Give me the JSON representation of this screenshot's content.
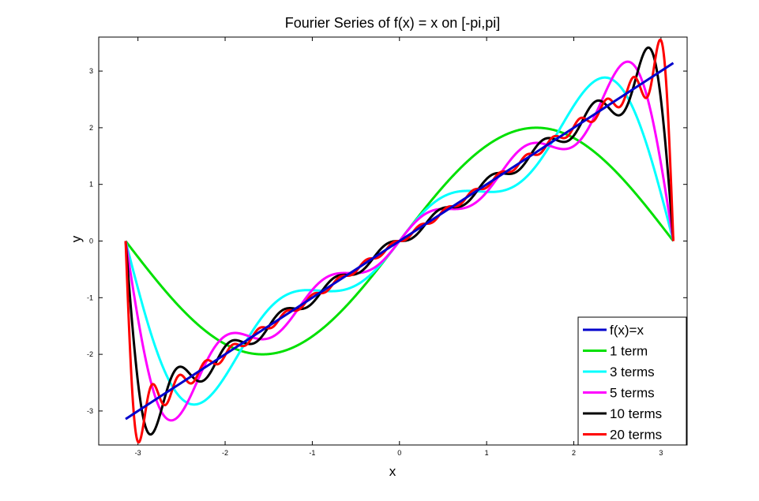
{
  "chart_data": {
    "type": "line",
    "title": "Fourier Series of f(x) = x on [-pi,pi]",
    "xlabel": "x",
    "ylabel": "y",
    "xlim": [
      -3.45,
      3.3
    ],
    "ylim": [
      -3.6,
      3.6
    ],
    "xticks": [
      -3,
      -2,
      -1,
      0,
      1,
      2,
      3
    ],
    "yticks": [
      -3,
      -2,
      -1,
      0,
      1,
      2,
      3
    ],
    "xtick_labels": [
      "-3",
      "-2",
      "-1",
      "0",
      "1",
      "2",
      "3"
    ],
    "ytick_labels": [
      "-3",
      "-2",
      "-1",
      "0",
      "1",
      "2",
      "3"
    ],
    "x_range": [
      -3.1416,
      3.1416
    ],
    "legend_position": "bottom-right",
    "series": [
      {
        "name": "f(x)=x",
        "terms": 0,
        "color": "#0000cc"
      },
      {
        "name": "1 term",
        "terms": 1,
        "color": "#00e000"
      },
      {
        "name": "3 terms",
        "terms": 3,
        "color": "#00ffff"
      },
      {
        "name": "5 terms",
        "terms": 5,
        "color": "#ff00ff"
      },
      {
        "name": "10 terms",
        "terms": 10,
        "color": "#000000"
      },
      {
        "name": "20 terms",
        "terms": 20,
        "color": "#ff0000"
      }
    ]
  }
}
